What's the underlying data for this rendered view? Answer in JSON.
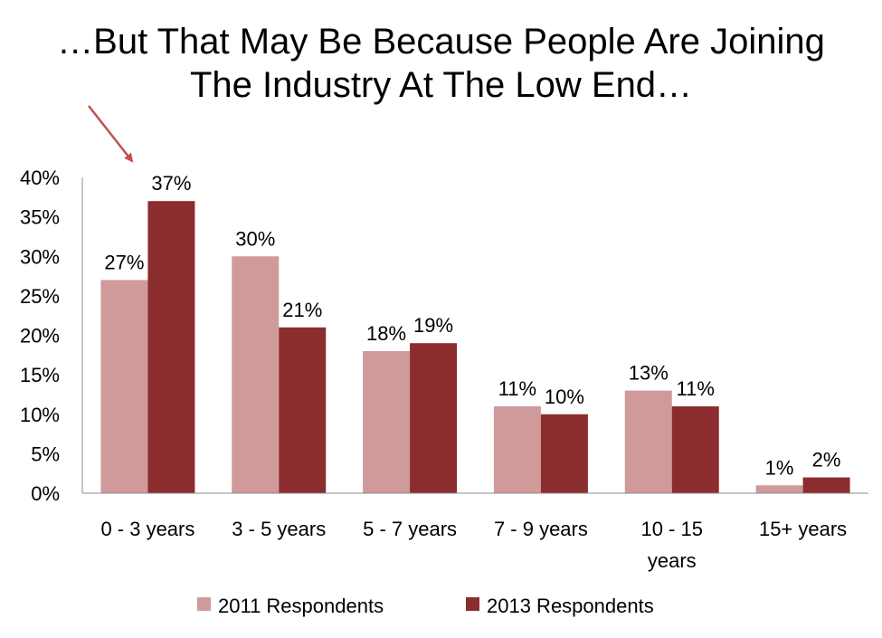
{
  "title_lines": [
    "…But That May Be Because People Are Joining",
    "The Industry At The Low End…"
  ],
  "colors": {
    "series_2011": "#d09a9a",
    "series_2013": "#8b2d2f",
    "arrow": "#c0504d",
    "axis": "#8c8c8c"
  },
  "chart_data": {
    "type": "bar",
    "title": "…But That May Be Because People Are Joining The Industry At The Low End…",
    "categories": [
      [
        "0 - 3 years"
      ],
      [
        "3 - 5 years"
      ],
      [
        "5 - 7 years"
      ],
      [
        "7 - 9 years"
      ],
      [
        "10 - 15",
        "years"
      ],
      [
        "15+ years"
      ]
    ],
    "series": [
      {
        "name": "2011 Respondents",
        "values": [
          27,
          30,
          18,
          11,
          13,
          1
        ],
        "labels": [
          "27%",
          "30%",
          "18%",
          "11%",
          "13%",
          "1%"
        ],
        "color": "#d09a9a"
      },
      {
        "name": "2013 Respondents",
        "values": [
          37,
          21,
          19,
          10,
          11,
          2
        ],
        "labels": [
          "37%",
          "21%",
          "19%",
          "10%",
          "11%",
          "2%"
        ],
        "color": "#8b2d2f"
      }
    ],
    "ylim": [
      0,
      40
    ],
    "yticks": [
      "0%",
      "5%",
      "10%",
      "15%",
      "20%",
      "25%",
      "30%",
      "35%",
      "40%"
    ],
    "ytick_values": [
      0,
      5,
      10,
      15,
      20,
      25,
      30,
      35,
      40
    ],
    "grid": false,
    "legend_position": "bottom",
    "annotations": [
      {
        "type": "arrow",
        "points_to": "0 - 3 years / 2013 Respondents"
      }
    ]
  }
}
